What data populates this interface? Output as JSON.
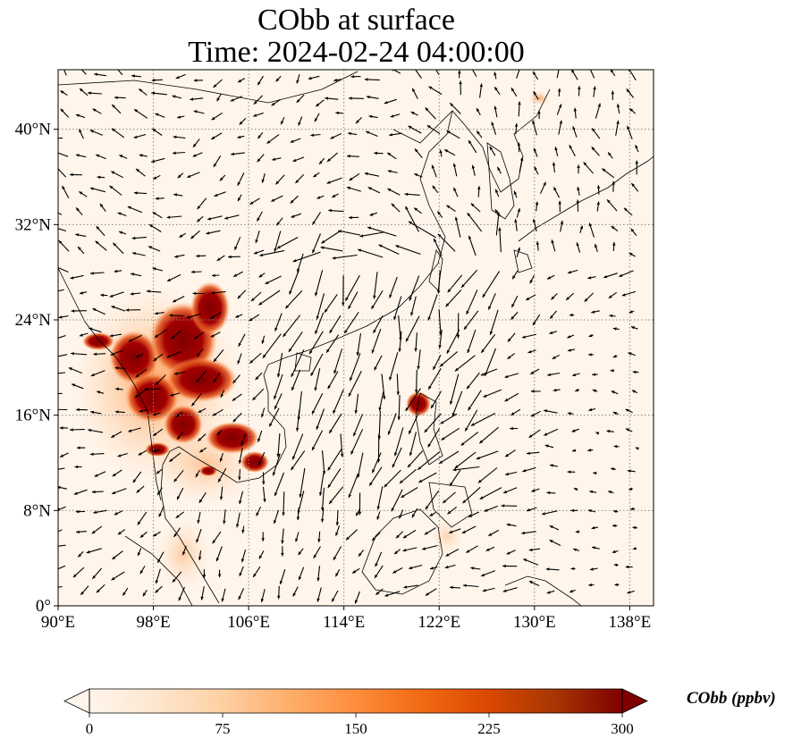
{
  "title": {
    "line1": "CObb at surface",
    "line2": "Time: 2024-02-24 04:00:00"
  },
  "map": {
    "lon_range": [
      90,
      140
    ],
    "lat_range": [
      0,
      45
    ],
    "lon_ticks": [
      "90°E",
      "98°E",
      "106°E",
      "114°E",
      "122°E",
      "130°E",
      "138°E"
    ],
    "lat_ticks": [
      "0°",
      "8°N",
      "16°N",
      "24°N",
      "32°N",
      "40°N"
    ],
    "lon_values": [
      90,
      98,
      106,
      114,
      122,
      130,
      138
    ],
    "lat_values": [
      0,
      8,
      16,
      24,
      32,
      40
    ],
    "gridlines": true,
    "wind_vectors": "black-arrows"
  },
  "colorbar": {
    "title": "CObb (ppbv)",
    "min": 0,
    "max": 300,
    "tick_labels": [
      "0",
      "75",
      "150",
      "225",
      "300"
    ],
    "extend": "both",
    "colormap": [
      "#fff5eb",
      "#fee6ce",
      "#fdd0a2",
      "#fdae6b",
      "#fd8d3c",
      "#f16913",
      "#d94801",
      "#a63603",
      "#7f0000"
    ]
  },
  "colors": {
    "background": "#fff5eb",
    "coast": "#000000",
    "grid": "#888888",
    "hotspot": "#7f0000"
  }
}
